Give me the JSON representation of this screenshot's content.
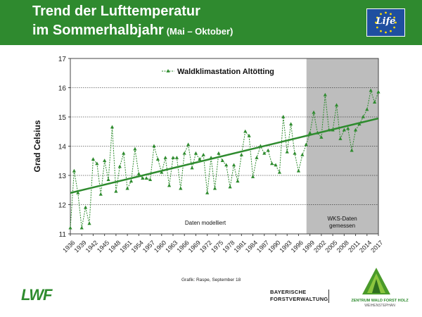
{
  "header": {
    "title_line1": "Trend der Lufttemperatur",
    "title_line2": "im Sommerhalbjahr",
    "title_sub": "(Mai – Oktober)",
    "eu_logo_text": "Life",
    "bg_color": "#2f8a2f"
  },
  "chart_data": {
    "type": "line",
    "title": "Waldklimastation Altötting",
    "ylabel": "Grad Celsius",
    "xlabel": "",
    "ylim": [
      11,
      17
    ],
    "xlim": [
      1936,
      2017
    ],
    "yticks": [
      11,
      12,
      13,
      14,
      15,
      16,
      17
    ],
    "xticks": [
      1936,
      1939,
      1942,
      1945,
      1948,
      1951,
      1954,
      1957,
      1960,
      1963,
      1966,
      1969,
      1972,
      1975,
      1978,
      1981,
      1984,
      1987,
      1990,
      1993,
      1996,
      1999,
      2002,
      2005,
      2008,
      2011,
      2014,
      2017
    ],
    "grid": "horizontal",
    "legend_position": "top",
    "series": [
      {
        "name": "Waldklimastation Altötting",
        "color": "#2e8b2e",
        "x": [
          1936,
          1937,
          1938,
          1939,
          1940,
          1941,
          1942,
          1943,
          1944,
          1945,
          1946,
          1947,
          1948,
          1949,
          1950,
          1951,
          1952,
          1953,
          1954,
          1955,
          1956,
          1957,
          1958,
          1959,
          1960,
          1961,
          1962,
          1963,
          1964,
          1965,
          1966,
          1967,
          1968,
          1969,
          1970,
          1971,
          1972,
          1973,
          1974,
          1975,
          1976,
          1977,
          1978,
          1979,
          1980,
          1981,
          1982,
          1983,
          1984,
          1985,
          1986,
          1987,
          1988,
          1989,
          1990,
          1991,
          1992,
          1993,
          1994,
          1995,
          1996,
          1997,
          1998,
          1999,
          2000,
          2001,
          2002,
          2003,
          2004,
          2005,
          2006,
          2007,
          2008,
          2009,
          2010,
          2011,
          2012,
          2013,
          2014,
          2015,
          2016,
          2017
        ],
        "y": [
          11.2,
          13.15,
          12.4,
          11.2,
          11.9,
          11.35,
          13.55,
          13.4,
          12.35,
          13.5,
          12.85,
          14.65,
          12.45,
          13.3,
          13.75,
          12.55,
          12.8,
          13.9,
          13.05,
          12.9,
          12.9,
          12.85,
          14.0,
          13.55,
          13.1,
          13.6,
          12.65,
          13.6,
          13.6,
          12.55,
          13.75,
          14.05,
          13.25,
          13.75,
          13.55,
          13.7,
          12.4,
          13.6,
          12.55,
          13.75,
          13.5,
          13.35,
          12.6,
          13.35,
          12.8,
          13.7,
          14.5,
          14.35,
          12.95,
          13.6,
          14.0,
          13.75,
          13.85,
          13.4,
          13.35,
          13.1,
          15.0,
          13.8,
          14.75,
          13.75,
          13.15,
          13.7,
          14.05,
          14.45,
          15.15,
          14.45,
          14.3,
          15.75,
          14.55,
          14.55,
          15.4,
          14.25,
          14.55,
          14.6,
          13.85,
          14.55,
          14.75,
          15.0,
          15.25,
          15.9,
          15.5,
          15.85
        ]
      }
    ],
    "trend": {
      "x": [
        1936,
        2017
      ],
      "y": [
        12.4,
        14.95
      ],
      "color": "#2e8b2e"
    },
    "shaded_region": {
      "x_start": 1998,
      "x_end": 2017,
      "color": "#bdbdbd"
    },
    "annotations": {
      "left_note": "Daten modelliert",
      "right_note_line1": "WKS-Daten",
      "right_note_line2": "gemessen"
    }
  },
  "footer": {
    "credit": "Grafik: Raspe, September 18",
    "lwf_logo": "LWF",
    "bay_line1": "BAYERISCHE",
    "bay_line2": "FORSTVERWALTUNG",
    "zwfh_line1": "ZENTRUM WALD FORST HOLZ",
    "zwfh_line2": "WEIHENSTEPHAN"
  }
}
